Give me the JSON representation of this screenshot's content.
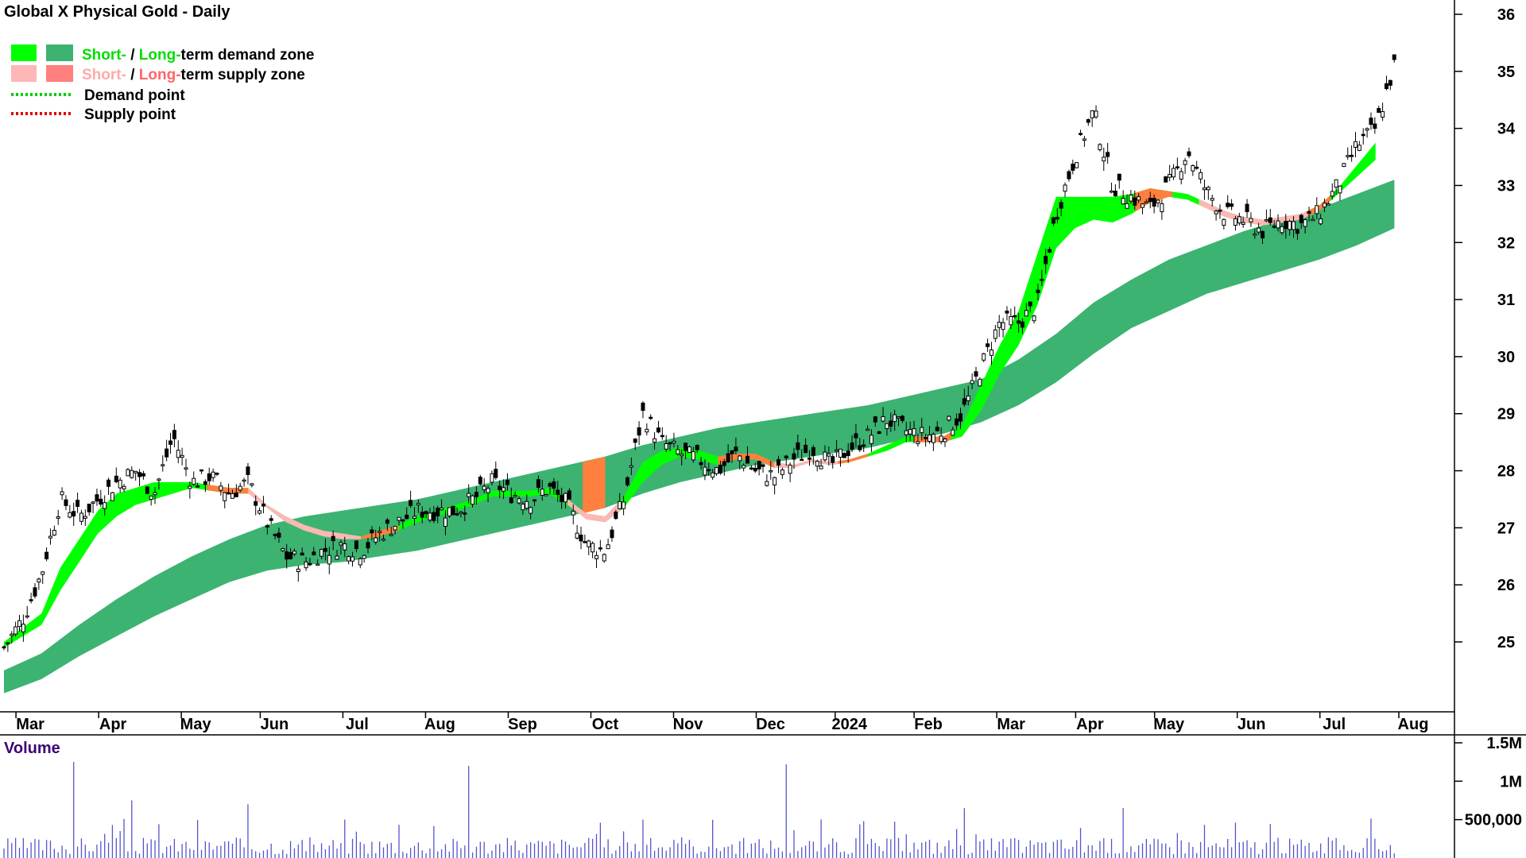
{
  "title": "Global X Physical Gold - Daily",
  "legend": {
    "demand_short": "Short-",
    "demand_sep": " / ",
    "demand_long": "Long-",
    "demand_rest": "term demand zone",
    "supply_short": "Short-",
    "supply_sep": " / ",
    "supply_long": "Long-",
    "supply_rest": "term supply zone",
    "demand_point": "Demand point",
    "supply_point": "Supply point"
  },
  "volume_label": "Volume",
  "colors": {
    "short_demand": "#00ff00",
    "long_demand": "#3cb371",
    "short_supply": "#ffb6b6",
    "long_supply": "#ff7f7f",
    "supply_band": "#ff7f3f",
    "demand_point": "#00cc00",
    "supply_point": "#dd0000",
    "volume_bar": "#5555cc",
    "volume_label": "#3d0073"
  },
  "chart_data": {
    "type": "candlestick",
    "frequency": "Daily",
    "y_ticks": [
      "36",
      "35",
      "34",
      "33",
      "32",
      "31",
      "30",
      "29",
      "28",
      "27",
      "26",
      "25"
    ],
    "y_range": [
      24.2,
      36.3
    ],
    "x_labels": [
      "Mar",
      "Apr",
      "May",
      "Jun",
      "Jul",
      "Aug",
      "Sep",
      "Oct",
      "Nov",
      "Dec",
      "2024",
      "Feb",
      "Mar",
      "Apr",
      "May",
      "Jun",
      "Jul",
      "Aug"
    ],
    "x_label_pos": [
      0.7,
      2.9,
      5.1,
      7.2,
      9.4,
      11.6,
      13.8,
      16.0,
      18.2,
      20.4,
      22.5,
      24.6,
      26.8,
      28.9,
      31.0,
      33.2,
      35.4,
      37.5
    ],
    "price_close": [
      [
        0.0,
        24.9
      ],
      [
        0.5,
        25.4
      ],
      [
        1.0,
        26.2
      ],
      [
        1.5,
        27.5
      ],
      [
        2.0,
        27.2
      ],
      [
        2.5,
        27.5
      ],
      [
        3.0,
        27.8
      ],
      [
        3.5,
        28.0
      ],
      [
        4.0,
        27.6
      ],
      [
        4.5,
        28.6
      ],
      [
        5.0,
        27.8
      ],
      [
        5.5,
        27.9
      ],
      [
        6.0,
        27.6
      ],
      [
        6.5,
        27.8
      ],
      [
        7.0,
        27.1
      ],
      [
        7.5,
        26.5
      ],
      [
        8.0,
        26.4
      ],
      [
        8.5,
        26.6
      ],
      [
        9.0,
        26.7
      ],
      [
        9.5,
        26.6
      ],
      [
        10.0,
        26.9
      ],
      [
        10.5,
        27.1
      ],
      [
        11.0,
        27.3
      ],
      [
        11.5,
        27.3
      ],
      [
        12.0,
        27.3
      ],
      [
        12.5,
        27.5
      ],
      [
        13.0,
        27.8
      ],
      [
        13.5,
        27.6
      ],
      [
        14.0,
        27.5
      ],
      [
        14.5,
        27.7
      ],
      [
        15.0,
        27.4
      ],
      [
        15.5,
        26.7
      ],
      [
        16.0,
        26.6
      ],
      [
        16.5,
        27.5
      ],
      [
        17.0,
        29.0
      ],
      [
        17.5,
        28.5
      ],
      [
        18.0,
        28.3
      ],
      [
        18.5,
        28.2
      ],
      [
        19.0,
        28.0
      ],
      [
        19.5,
        28.3
      ],
      [
        20.0,
        28.0
      ],
      [
        20.5,
        27.9
      ],
      [
        21.0,
        28.2
      ],
      [
        21.5,
        28.4
      ],
      [
        22.0,
        28.1
      ],
      [
        22.5,
        28.4
      ],
      [
        23.0,
        28.6
      ],
      [
        23.5,
        28.9
      ],
      [
        24.0,
        28.7
      ],
      [
        24.5,
        28.6
      ],
      [
        25.0,
        28.7
      ],
      [
        25.5,
        29.0
      ],
      [
        26.0,
        29.8
      ],
      [
        26.5,
        30.6
      ],
      [
        27.0,
        30.6
      ],
      [
        27.5,
        30.9
      ],
      [
        28.0,
        32.5
      ],
      [
        28.5,
        33.5
      ],
      [
        29.0,
        34.3
      ],
      [
        29.5,
        33.0
      ],
      [
        30.0,
        32.8
      ],
      [
        30.5,
        32.6
      ],
      [
        31.0,
        33.0
      ],
      [
        31.5,
        33.6
      ],
      [
        32.0,
        32.9
      ],
      [
        32.5,
        32.5
      ],
      [
        33.0,
        32.4
      ],
      [
        33.5,
        32.2
      ],
      [
        34.0,
        32.4
      ],
      [
        34.5,
        32.3
      ],
      [
        35.0,
        32.5
      ],
      [
        35.5,
        33.0
      ],
      [
        36.0,
        33.7
      ],
      [
        36.5,
        34.0
      ],
      [
        37.0,
        35.1
      ]
    ],
    "short_band": [
      [
        0.0,
        24.9,
        25.0
      ],
      [
        1.0,
        25.3,
        25.5
      ],
      [
        1.5,
        25.9,
        26.3
      ],
      [
        2.0,
        26.4,
        26.8
      ],
      [
        2.5,
        26.9,
        27.3
      ],
      [
        3.0,
        27.2,
        27.6
      ],
      [
        3.5,
        27.4,
        27.7
      ],
      [
        4.0,
        27.5,
        27.8
      ],
      [
        4.5,
        27.6,
        27.8
      ],
      [
        5.0,
        27.7,
        27.8
      ],
      [
        5.5,
        27.65,
        27.75
      ],
      [
        6.0,
        27.6,
        27.7
      ],
      [
        6.5,
        27.6,
        27.7
      ],
      [
        7.0,
        27.35,
        27.4
      ],
      [
        7.5,
        27.1,
        27.2
      ],
      [
        8.0,
        26.95,
        27.05
      ],
      [
        8.5,
        26.85,
        26.95
      ],
      [
        9.0,
        26.8,
        26.9
      ],
      [
        9.5,
        26.8,
        26.85
      ],
      [
        10.0,
        26.85,
        26.95
      ],
      [
        10.5,
        26.95,
        27.05
      ],
      [
        11.0,
        27.1,
        27.2
      ],
      [
        11.5,
        27.2,
        27.3
      ],
      [
        12.0,
        27.3,
        27.4
      ],
      [
        12.5,
        27.4,
        27.5
      ],
      [
        13.0,
        27.55,
        27.65
      ],
      [
        13.5,
        27.55,
        27.65
      ],
      [
        14.0,
        27.55,
        27.65
      ],
      [
        14.5,
        27.6,
        27.7
      ],
      [
        15.0,
        27.4,
        27.5
      ],
      [
        15.5,
        27.15,
        27.25
      ],
      [
        16.0,
        27.1,
        27.2
      ],
      [
        16.5,
        27.35,
        27.55
      ],
      [
        17.0,
        27.8,
        28.15
      ],
      [
        17.5,
        28.1,
        28.35
      ],
      [
        18.0,
        28.25,
        28.4
      ],
      [
        18.5,
        28.2,
        28.35
      ],
      [
        19.0,
        28.1,
        28.25
      ],
      [
        19.5,
        28.2,
        28.3
      ],
      [
        20.0,
        28.2,
        28.3
      ],
      [
        20.5,
        28.05,
        28.15
      ],
      [
        21.0,
        28.05,
        28.1
      ],
      [
        21.5,
        28.15,
        28.2
      ],
      [
        22.0,
        28.1,
        28.15
      ],
      [
        22.5,
        28.15,
        28.2
      ],
      [
        23.0,
        28.25,
        28.3
      ],
      [
        23.5,
        28.35,
        28.45
      ],
      [
        24.0,
        28.5,
        28.6
      ],
      [
        24.5,
        28.5,
        28.6
      ],
      [
        25.0,
        28.5,
        28.6
      ],
      [
        25.5,
        28.6,
        28.8
      ],
      [
        26.0,
        29.05,
        29.5
      ],
      [
        26.5,
        29.7,
        30.2
      ],
      [
        27.0,
        30.2,
        30.8
      ],
      [
        27.5,
        30.9,
        31.8
      ],
      [
        28.0,
        31.9,
        32.8
      ],
      [
        28.5,
        32.25,
        32.8
      ],
      [
        29.0,
        32.4,
        32.8
      ],
      [
        29.5,
        32.35,
        32.8
      ],
      [
        30.0,
        32.5,
        32.85
      ],
      [
        30.5,
        32.7,
        32.95
      ],
      [
        31.0,
        32.8,
        32.9
      ],
      [
        31.5,
        32.75,
        32.85
      ],
      [
        32.0,
        32.6,
        32.7
      ],
      [
        32.5,
        32.45,
        32.55
      ],
      [
        33.0,
        32.35,
        32.45
      ],
      [
        33.5,
        32.3,
        32.4
      ],
      [
        34.0,
        32.35,
        32.45
      ],
      [
        34.5,
        32.4,
        32.5
      ],
      [
        35.0,
        32.55,
        32.65
      ],
      [
        35.5,
        32.85,
        32.95
      ],
      [
        36.0,
        33.15,
        33.35
      ],
      [
        36.5,
        33.45,
        33.75
      ]
    ],
    "long_band": [
      [
        0.0,
        24.1,
        24.5
      ],
      [
        1.0,
        24.35,
        24.8
      ],
      [
        2.0,
        24.75,
        25.3
      ],
      [
        3.0,
        25.1,
        25.75
      ],
      [
        4.0,
        25.45,
        26.15
      ],
      [
        5.0,
        25.75,
        26.5
      ],
      [
        6.0,
        26.05,
        26.8
      ],
      [
        7.0,
        26.25,
        27.05
      ],
      [
        8.0,
        26.35,
        27.2
      ],
      [
        9.0,
        26.4,
        27.3
      ],
      [
        10.0,
        26.5,
        27.4
      ],
      [
        11.0,
        26.6,
        27.5
      ],
      [
        12.0,
        26.75,
        27.65
      ],
      [
        13.0,
        26.9,
        27.8
      ],
      [
        14.0,
        27.05,
        27.95
      ],
      [
        15.0,
        27.2,
        28.1
      ],
      [
        16.0,
        27.35,
        28.25
      ],
      [
        17.0,
        27.6,
        28.45
      ],
      [
        18.0,
        27.8,
        28.6
      ],
      [
        19.0,
        27.95,
        28.75
      ],
      [
        20.0,
        28.1,
        28.85
      ],
      [
        21.0,
        28.2,
        28.95
      ],
      [
        22.0,
        28.3,
        29.05
      ],
      [
        23.0,
        28.4,
        29.15
      ],
      [
        24.0,
        28.55,
        29.3
      ],
      [
        25.0,
        28.65,
        29.45
      ],
      [
        26.0,
        28.85,
        29.6
      ],
      [
        27.0,
        29.15,
        29.95
      ],
      [
        28.0,
        29.55,
        30.4
      ],
      [
        29.0,
        30.05,
        30.95
      ],
      [
        30.0,
        30.5,
        31.35
      ],
      [
        31.0,
        30.8,
        31.7
      ],
      [
        32.0,
        31.1,
        31.95
      ],
      [
        33.0,
        31.3,
        32.2
      ],
      [
        34.0,
        31.5,
        32.4
      ],
      [
        35.0,
        31.7,
        32.6
      ],
      [
        36.0,
        31.95,
        32.85
      ],
      [
        37.0,
        32.25,
        33.1
      ]
    ],
    "volume_spikes": [
      [
        1.85,
        1.25
      ],
      [
        12.4,
        1.2
      ],
      [
        20.8,
        1.22
      ],
      [
        3.4,
        0.75
      ],
      [
        6.5,
        0.7
      ],
      [
        29.8,
        0.65
      ],
      [
        25.6,
        0.65
      ],
      [
        17.0,
        0.5
      ]
    ],
    "volume_ticks": [
      "1.5M",
      "1M",
      "500,000"
    ]
  }
}
